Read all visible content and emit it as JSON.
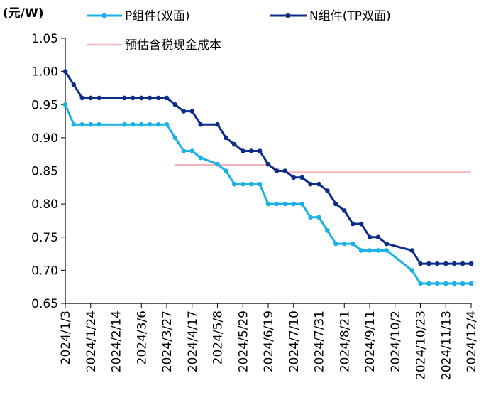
{
  "chart_data": {
    "type": "line",
    "unit_label": "(元/W)",
    "ylim": [
      0.65,
      1.05
    ],
    "y_ticks": [
      "1.05",
      "1.00",
      "0.95",
      "0.90",
      "0.85",
      "0.80",
      "0.75",
      "0.70",
      "0.65"
    ],
    "x_tick_labels": [
      "2024/1/3",
      "2024/1/24",
      "2024/2/14",
      "2024/3/6",
      "2024/3/27",
      "2024/4/17",
      "2024/5/8",
      "2024/5/29",
      "2024/6/19",
      "2024/7/10",
      "2024/7/31",
      "2024/8/21",
      "2024/9/11",
      "2024/10/2",
      "2024/10/23",
      "2024/11/13",
      "2024/12/4"
    ],
    "legend": [
      "P组件(双面)",
      "N组件(TP双面)",
      "预估含税现金成本"
    ],
    "grid": false,
    "series": [
      {
        "name": "P组件(双面)",
        "color": "#1ab2e6",
        "points": [
          [
            "2024-01-03",
            0.95
          ],
          [
            "2024-01-10",
            0.92
          ],
          [
            "2024-01-17",
            0.92
          ],
          [
            "2024-01-24",
            0.92
          ],
          [
            "2024-01-31",
            0.92
          ],
          [
            "2024-02-21",
            0.92
          ],
          [
            "2024-02-28",
            0.92
          ],
          [
            "2024-03-06",
            0.92
          ],
          [
            "2024-03-13",
            0.92
          ],
          [
            "2024-03-20",
            0.92
          ],
          [
            "2024-03-27",
            0.92
          ],
          [
            "2024-04-03",
            0.9
          ],
          [
            "2024-04-10",
            0.88
          ],
          [
            "2024-04-17",
            0.88
          ],
          [
            "2024-04-24",
            0.87
          ],
          [
            "2024-05-08",
            0.86
          ],
          [
            "2024-05-15",
            0.85
          ],
          [
            "2024-05-22",
            0.83
          ],
          [
            "2024-05-29",
            0.83
          ],
          [
            "2024-06-05",
            0.83
          ],
          [
            "2024-06-12",
            0.83
          ],
          [
            "2024-06-19",
            0.8
          ],
          [
            "2024-06-26",
            0.8
          ],
          [
            "2024-07-03",
            0.8
          ],
          [
            "2024-07-10",
            0.8
          ],
          [
            "2024-07-17",
            0.8
          ],
          [
            "2024-07-24",
            0.78
          ],
          [
            "2024-07-31",
            0.78
          ],
          [
            "2024-08-07",
            0.76
          ],
          [
            "2024-08-14",
            0.74
          ],
          [
            "2024-08-21",
            0.74
          ],
          [
            "2024-08-28",
            0.74
          ],
          [
            "2024-09-04",
            0.73
          ],
          [
            "2024-09-11",
            0.73
          ],
          [
            "2024-09-18",
            0.73
          ],
          [
            "2024-09-25",
            0.73
          ],
          [
            "2024-10-16",
            0.7
          ],
          [
            "2024-10-23",
            0.68
          ],
          [
            "2024-10-30",
            0.68
          ],
          [
            "2024-11-06",
            0.68
          ],
          [
            "2024-11-13",
            0.68
          ],
          [
            "2024-11-20",
            0.68
          ],
          [
            "2024-11-27",
            0.68
          ],
          [
            "2024-12-04",
            0.68
          ],
          [
            "2024-12-11",
            0.68
          ]
        ]
      },
      {
        "name": "N组件(TP双面)",
        "color": "#0a2c8a",
        "points": [
          [
            "2024-01-03",
            1.0
          ],
          [
            "2024-01-10",
            0.98
          ],
          [
            "2024-01-17",
            0.96
          ],
          [
            "2024-01-24",
            0.96
          ],
          [
            "2024-01-31",
            0.96
          ],
          [
            "2024-02-21",
            0.96
          ],
          [
            "2024-02-28",
            0.96
          ],
          [
            "2024-03-06",
            0.96
          ],
          [
            "2024-03-13",
            0.96
          ],
          [
            "2024-03-20",
            0.96
          ],
          [
            "2024-03-27",
            0.96
          ],
          [
            "2024-04-03",
            0.95
          ],
          [
            "2024-04-10",
            0.94
          ],
          [
            "2024-04-17",
            0.94
          ],
          [
            "2024-04-24",
            0.92
          ],
          [
            "2024-05-08",
            0.92
          ],
          [
            "2024-05-15",
            0.9
          ],
          [
            "2024-05-22",
            0.89
          ],
          [
            "2024-05-29",
            0.88
          ],
          [
            "2024-06-05",
            0.88
          ],
          [
            "2024-06-12",
            0.88
          ],
          [
            "2024-06-19",
            0.86
          ],
          [
            "2024-06-26",
            0.85
          ],
          [
            "2024-07-03",
            0.85
          ],
          [
            "2024-07-10",
            0.84
          ],
          [
            "2024-07-17",
            0.84
          ],
          [
            "2024-07-24",
            0.83
          ],
          [
            "2024-07-31",
            0.83
          ],
          [
            "2024-08-07",
            0.82
          ],
          [
            "2024-08-14",
            0.8
          ],
          [
            "2024-08-21",
            0.79
          ],
          [
            "2024-08-28",
            0.77
          ],
          [
            "2024-09-04",
            0.77
          ],
          [
            "2024-09-11",
            0.75
          ],
          [
            "2024-09-18",
            0.75
          ],
          [
            "2024-09-25",
            0.74
          ],
          [
            "2024-10-16",
            0.73
          ],
          [
            "2024-10-23",
            0.71
          ],
          [
            "2024-10-30",
            0.71
          ],
          [
            "2024-11-06",
            0.71
          ],
          [
            "2024-11-13",
            0.71
          ],
          [
            "2024-11-20",
            0.71
          ],
          [
            "2024-11-27",
            0.71
          ],
          [
            "2024-12-04",
            0.71
          ],
          [
            "2024-12-11",
            0.71
          ]
        ]
      },
      {
        "name": "预估含税现金成本",
        "color": "#f4b6b9",
        "points": [
          [
            "2024-04-03",
            0.859
          ],
          [
            "2024-06-19",
            0.859
          ],
          [
            "2024-07-03",
            0.848
          ],
          [
            "2024-12-11",
            0.848
          ]
        ]
      }
    ]
  }
}
